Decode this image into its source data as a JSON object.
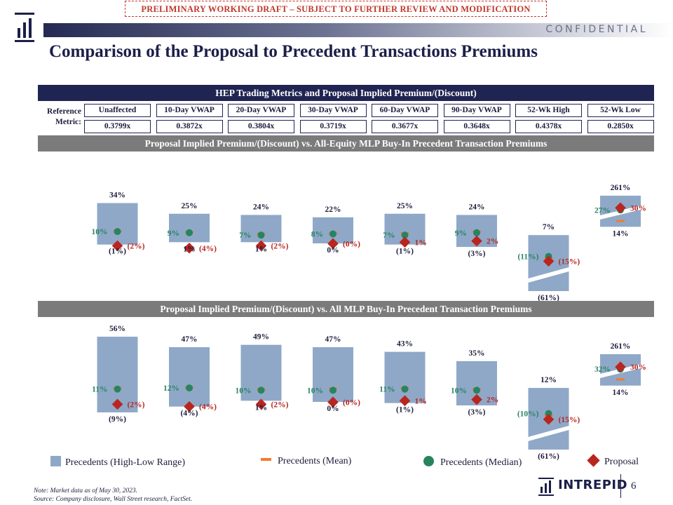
{
  "header": {
    "draft_banner": "PRELIMINARY WORKING DRAFT – SUBJECT TO FURTHER REVIEW AND MODIFICATION",
    "confidential": "CONFIDENTIAL",
    "title": "Comparison of the Proposal to Precedent Transactions Premiums"
  },
  "metrics": {
    "heading": "HEP Trading Metrics and Proposal Implied Premium/(Discount)",
    "row_label": "Reference Metric:",
    "columns": [
      {
        "label": "Unaffected",
        "value": "0.3799x"
      },
      {
        "label": "10-Day VWAP",
        "value": "0.3872x"
      },
      {
        "label": "20-Day VWAP",
        "value": "0.3804x"
      },
      {
        "label": "30-Day VWAP",
        "value": "0.3719x"
      },
      {
        "label": "60-Day VWAP",
        "value": "0.3677x"
      },
      {
        "label": "90-Day VWAP",
        "value": "0.3648x"
      },
      {
        "label": "52-Wk High",
        "value": "0.4378x"
      },
      {
        "label": "52-Wk Low",
        "value": "0.2850x"
      }
    ]
  },
  "colors": {
    "range": "#8fa8c8",
    "mean": "#ef7d2d",
    "median": "#27845f",
    "proposal": "#b8261f",
    "navy": "#1f2452",
    "gray_band": "#7b7b7b"
  },
  "chart_data": [
    {
      "type": "range",
      "title": "Proposal Implied Premium/(Discount) vs. All-Equity MLP Buy-In Precedent Transaction Premiums",
      "categories": [
        "Unaffected",
        "10-Day VWAP",
        "20-Day VWAP",
        "30-Day VWAP",
        "60-Day VWAP",
        "90-Day VWAP",
        "52-Wk High",
        "52-Wk Low"
      ],
      "high_labels": [
        "34%",
        "25%",
        "24%",
        "22%",
        "25%",
        "24%",
        "7%",
        "261%"
      ],
      "low_labels": [
        "(1%)",
        "1%",
        "1%",
        "0%",
        "(1%)",
        "(3%)",
        "(61%)",
        "14%"
      ],
      "median_labels": [
        "10%",
        "9%",
        "7%",
        "8%",
        "7%",
        "9%",
        "(11%)",
        "27%"
      ],
      "proposal_labels": [
        "(2%)",
        "(4%)",
        "(2%)",
        "(0%)",
        "1%",
        "2%",
        "(15%)",
        "30%"
      ],
      "high": [
        34,
        25,
        24,
        22,
        25,
        24,
        7,
        261
      ],
      "low": [
        -1,
        1,
        1,
        0,
        -1,
        -3,
        -61,
        14
      ],
      "median": [
        10,
        9,
        7,
        8,
        7,
        9,
        -11,
        27
      ],
      "mean": [
        10.5,
        9.5,
        8,
        8.5,
        8.5,
        10,
        -13,
        35
      ],
      "proposal": [
        -2,
        -4,
        -2,
        -0.2,
        1,
        2,
        -15,
        30
      ]
    },
    {
      "type": "range",
      "title": "Proposal Implied Premium/(Discount) vs. All MLP Buy-In Precedent Transaction Premiums",
      "categories": [
        "Unaffected",
        "10-Day VWAP",
        "20-Day VWAP",
        "30-Day VWAP",
        "60-Day VWAP",
        "90-Day VWAP",
        "52-Wk High",
        "52-Wk Low"
      ],
      "high_labels": [
        "56%",
        "47%",
        "49%",
        "47%",
        "43%",
        "35%",
        "12%",
        "261%"
      ],
      "low_labels": [
        "(9%)",
        "(4%)",
        "1%",
        "0%",
        "(1%)",
        "(3%)",
        "(61%)",
        "14%"
      ],
      "median_labels": [
        "11%",
        "12%",
        "10%",
        "10%",
        "11%",
        "10%",
        "(10%)",
        "32%"
      ],
      "proposal_labels": [
        "(2%)",
        "(4%)",
        "(2%)",
        "(0%)",
        "1%",
        "2%",
        "(15%)",
        "30%"
      ],
      "high": [
        56,
        47,
        49,
        47,
        43,
        35,
        12,
        261
      ],
      "low": [
        -9,
        -4,
        1,
        0,
        -1,
        -3,
        -61,
        14
      ],
      "median": [
        11,
        12,
        10,
        10,
        11,
        10,
        -10,
        32
      ],
      "mean": [
        12,
        12.5,
        11,
        11.5,
        12,
        11,
        -12,
        43
      ],
      "proposal": [
        -2,
        -4,
        -2,
        -0.2,
        1,
        2,
        -15,
        30
      ]
    }
  ],
  "legend": {
    "range": "Precedents (High-Low Range)",
    "mean": "Precedents (Mean)",
    "median": "Precedents (Median)",
    "proposal": "Proposal"
  },
  "footer": {
    "note": "Note: Market data as of May 30, 2023.",
    "source": "Source: Company disclosure, Wall Street research, FactSet.",
    "brand": "INTREPID",
    "page": "6"
  }
}
